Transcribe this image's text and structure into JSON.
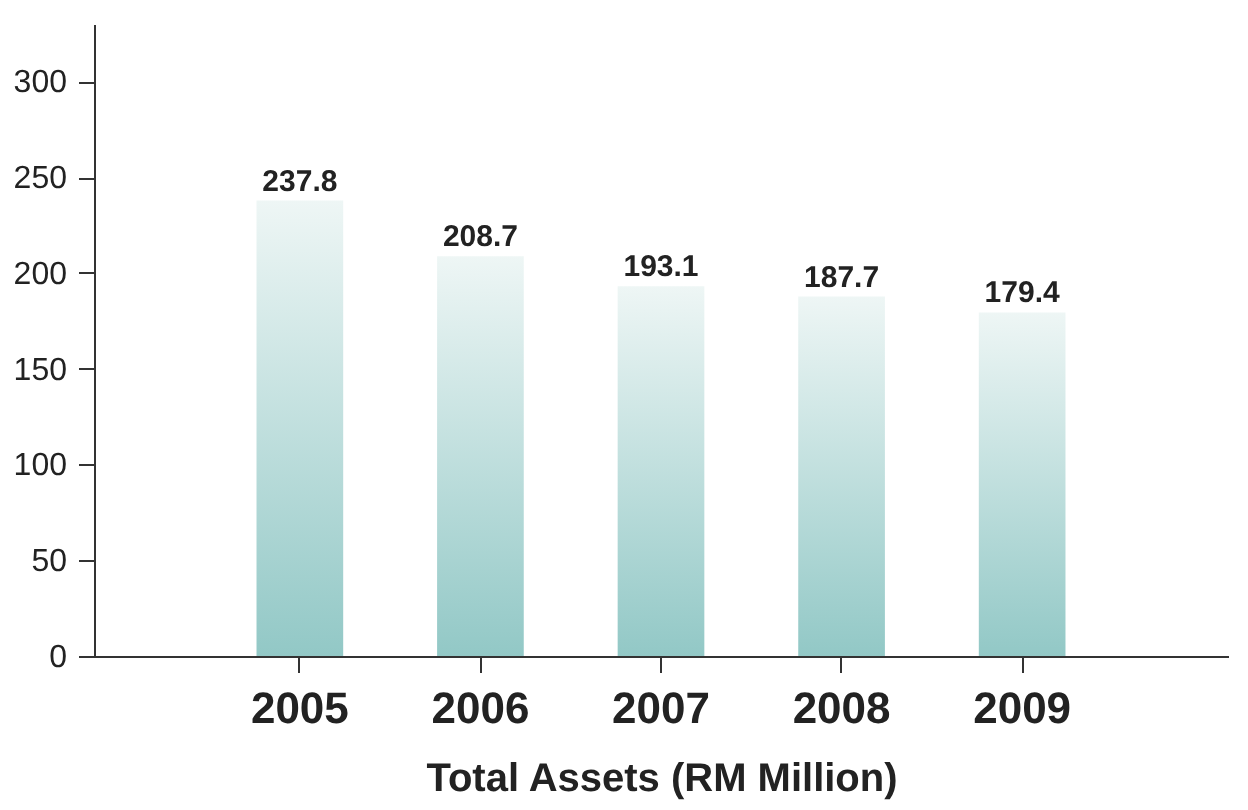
{
  "chart_data": {
    "type": "bar",
    "xlabel": "Total Assets (RM Million)",
    "categories": [
      "2005",
      "2006",
      "2007",
      "2008",
      "2009"
    ],
    "values": [
      237.8,
      208.7,
      193.1,
      187.7,
      179.4
    ],
    "color": "#92c8c6",
    "ylim": [
      0,
      330
    ],
    "yticks": [
      0,
      50,
      100,
      150,
      200,
      250,
      300
    ],
    "data_labels": true,
    "grid": false
  }
}
